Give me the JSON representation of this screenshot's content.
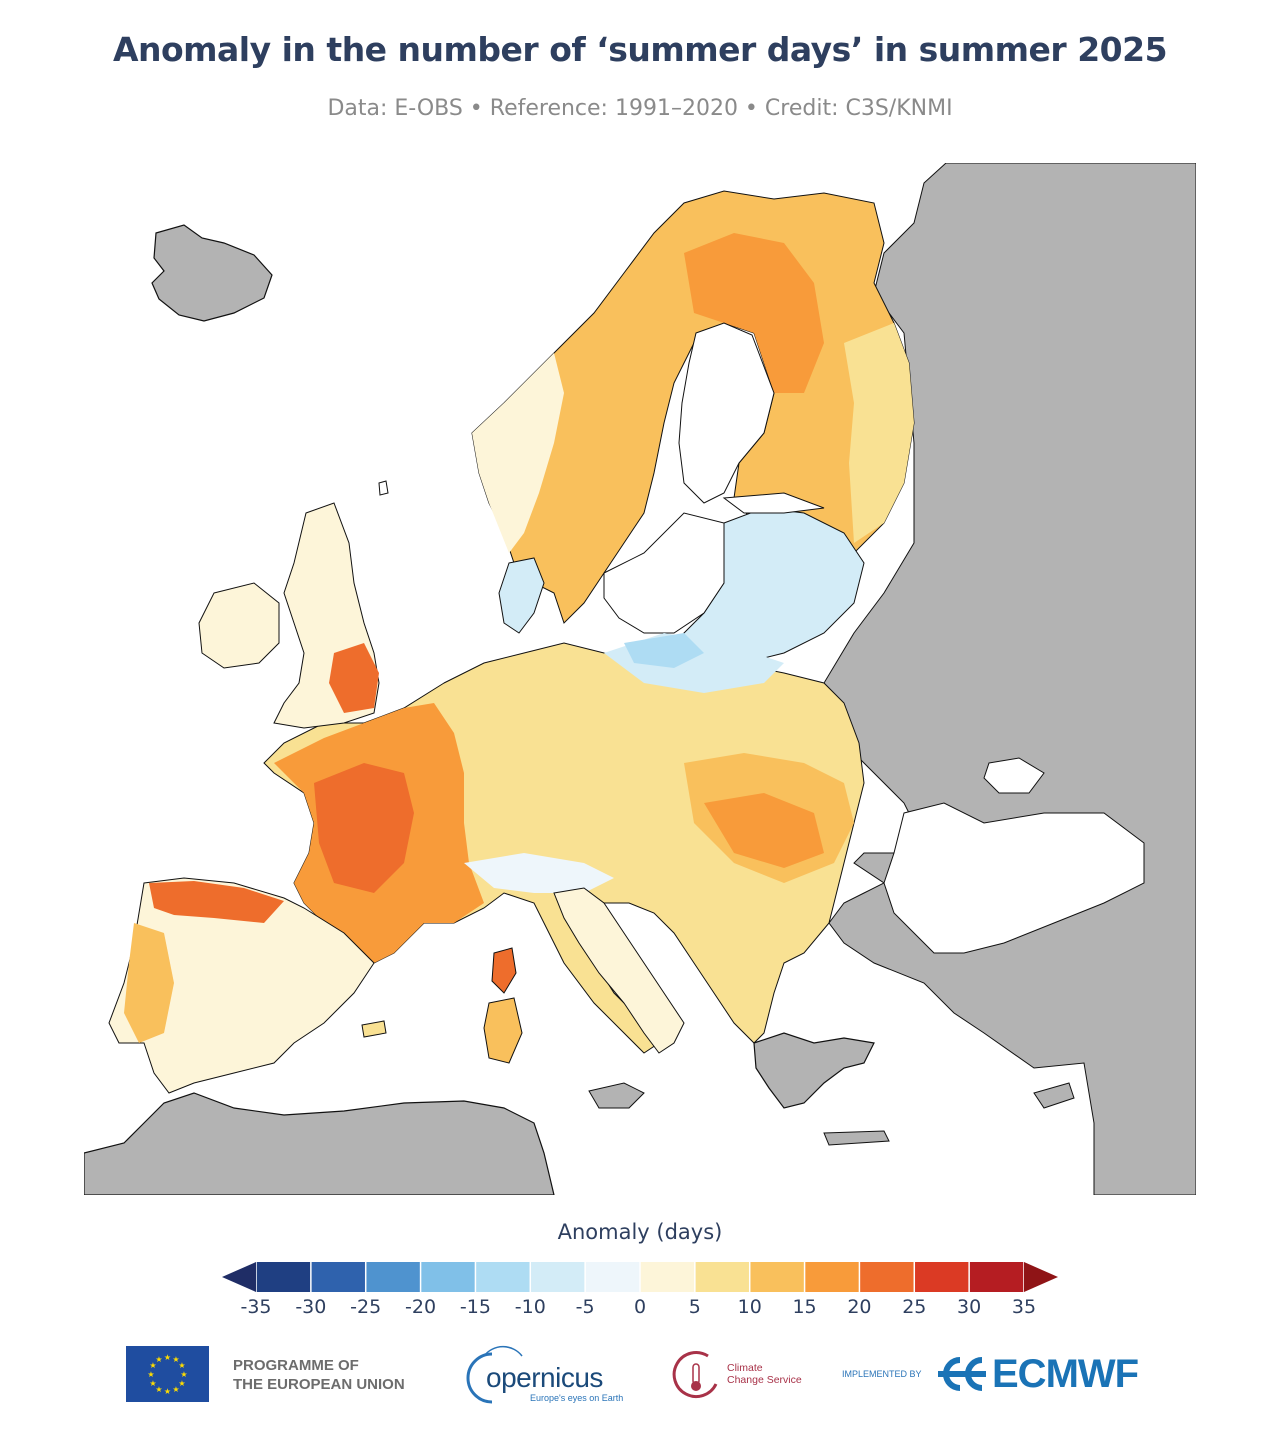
{
  "header": {
    "title": "Anomaly in the number of ‘summer days’ in summer 2025",
    "subtitle": "Data: E-OBS • Reference: 1991–2020 • Credit: C3S/KNMI"
  },
  "legend": {
    "title": "Anomaly (days)",
    "tick_labels": [
      "-35",
      "-30",
      "-25",
      "-20",
      "-15",
      "-10",
      "-5",
      "0",
      "5",
      "10",
      "15",
      "20",
      "25",
      "30",
      "35"
    ],
    "bins": [
      {
        "from": -35,
        "to": -30,
        "color": "#1f3f82"
      },
      {
        "from": -30,
        "to": -25,
        "color": "#2f62ad"
      },
      {
        "from": -25,
        "to": -20,
        "color": "#4f93cf"
      },
      {
        "from": -20,
        "to": -15,
        "color": "#80c0e8"
      },
      {
        "from": -15,
        "to": -10,
        "color": "#aedcf3"
      },
      {
        "from": -10,
        "to": -5,
        "color": "#d3ecf7"
      },
      {
        "from": -5,
        "to": 0,
        "color": "#eef6fb"
      },
      {
        "from": 0,
        "to": 5,
        "color": "#fdf5d9"
      },
      {
        "from": 5,
        "to": 10,
        "color": "#f9e193"
      },
      {
        "from": 10,
        "to": 15,
        "color": "#f9c05c"
      },
      {
        "from": 15,
        "to": 20,
        "color": "#f89b3a"
      },
      {
        "from": 20,
        "to": 25,
        "color": "#ee6d2c"
      },
      {
        "from": 25,
        "to": 30,
        "color": "#db3a24"
      },
      {
        "from": 30,
        "to": 35,
        "color": "#b51d22"
      }
    ],
    "under_color": "#1f2d66",
    "over_color": "#8f1416"
  },
  "map": {
    "no_data_color": "#b3b3b3",
    "sea_color": "#ffffff",
    "coast_color": "#111111"
  },
  "footer": {
    "eu_line1": "PROGRAMME OF",
    "eu_line2": "THE EUROPEAN UNION",
    "copernicus_word": "opernicus",
    "copernicus_tagline": "Europe's eyes on Earth",
    "c3s_line1": "Climate",
    "c3s_line2": "Change Service",
    "implemented_by": "IMPLEMENTED BY",
    "ecmwf_word": "ECMWF"
  }
}
